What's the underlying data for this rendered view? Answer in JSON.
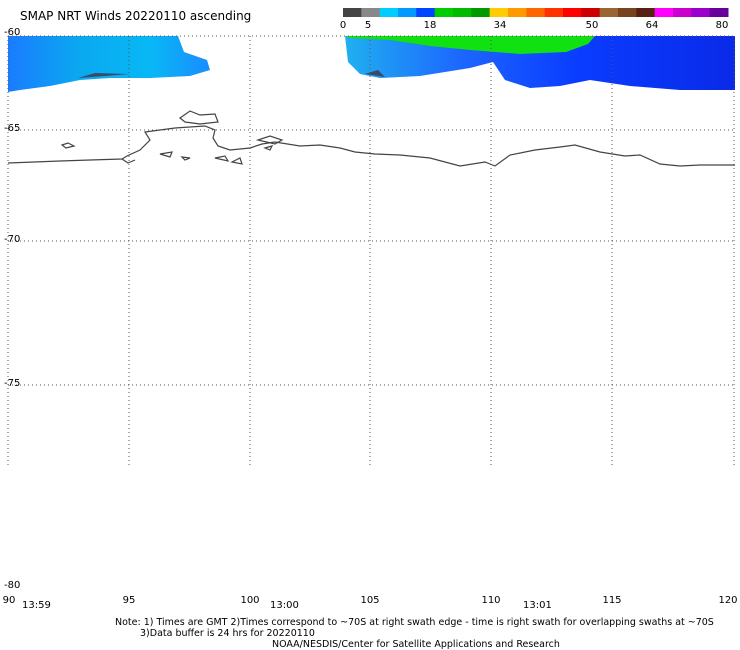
{
  "title": "SMAP NRT Winds 20220110 ascending",
  "colorbar": {
    "ticks": [
      "0",
      "5",
      "18",
      "34",
      "50",
      "64",
      "80"
    ],
    "segments": [
      "#444444",
      "#888888",
      "#00ccff",
      "#0099ff",
      "#0044ff",
      "#00cc00",
      "#00bb00",
      "#009900",
      "#ffcc00",
      "#ff9900",
      "#ff6600",
      "#ff3300",
      "#ff0000",
      "#cc0000",
      "#996633",
      "#774422",
      "#552211",
      "#ff00ff",
      "#cc00cc",
      "#9900cc",
      "#660099"
    ]
  },
  "lat_labels": [
    "-60",
    "-65",
    "-70",
    "-75",
    "-80"
  ],
  "lon_labels": [
    "90",
    "95",
    "100",
    "105",
    "110",
    "115",
    "120"
  ],
  "time_labels": [
    "13:59",
    "13:00",
    "13:01"
  ],
  "notes": {
    "line1": "Note: 1) Times are GMT 2)Times correspond to ~70S at right swath edge - time is right swath for overlapping swaths at ~70S",
    "line2": "3)Data buffer is 24 hrs for 20220110",
    "line3": "NOAA/NESDIS/Center for Satellite Applications and Research"
  }
}
